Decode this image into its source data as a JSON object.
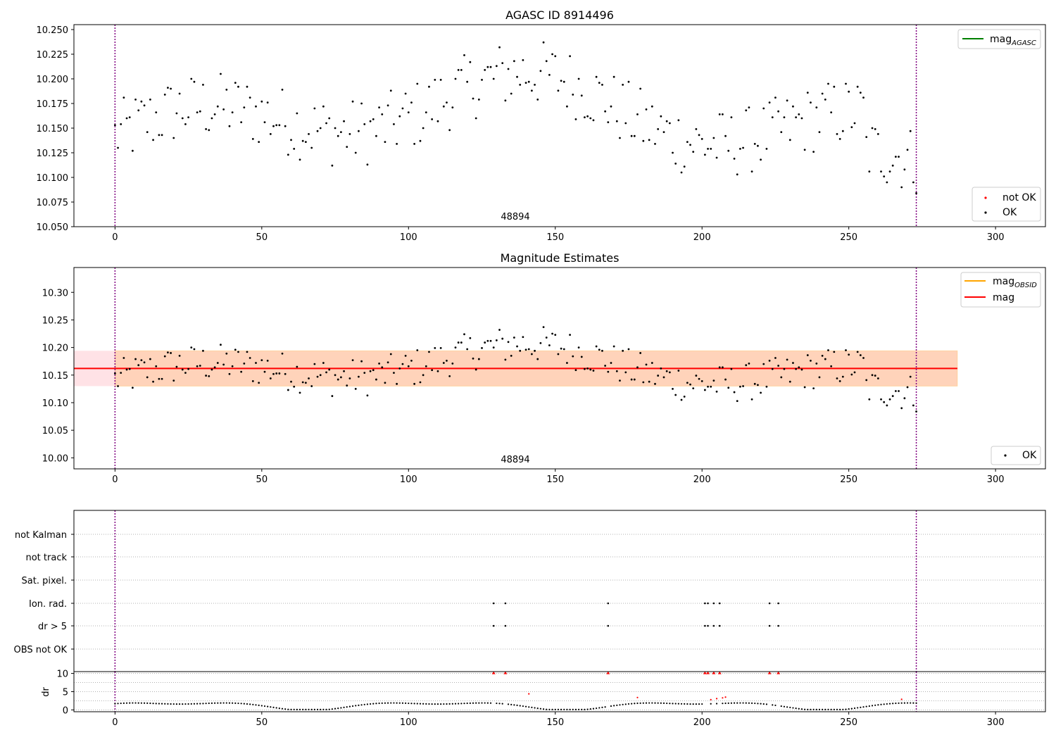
{
  "chart_data": [
    {
      "type": "scatter",
      "title": "AGASC ID 8914496",
      "annotation": "48894",
      "xlim": [
        -14,
        317
      ],
      "ylim": [
        10.05,
        10.255
      ],
      "xticks": [
        "0",
        "50",
        "100",
        "150",
        "200",
        "250",
        "300"
      ],
      "yticks": [
        "10.050",
        "10.075",
        "10.100",
        "10.125",
        "10.150",
        "10.175",
        "10.200",
        "10.225",
        "10.250"
      ],
      "vlines": [
        0,
        273
      ],
      "legend_lines": [
        {
          "label": "mag",
          "sub": "AGASC",
          "color": "#008000"
        }
      ],
      "legend_points": [
        {
          "label": "not OK",
          "color": "#ff0000"
        },
        {
          "label": "OK",
          "color": "#000000"
        }
      ]
    },
    {
      "type": "scatter",
      "title": "Magnitude Estimates",
      "annotation": "48894",
      "xlim": [
        -14,
        317
      ],
      "ylim": [
        9.98,
        10.345
      ],
      "xticks": [
        "0",
        "50",
        "100",
        "150",
        "200",
        "250",
        "300"
      ],
      "yticks": [
        "10.00",
        "10.05",
        "10.10",
        "10.15",
        "10.20",
        "10.25",
        "10.30"
      ],
      "vlines": [
        0,
        273
      ],
      "mag_line": {
        "y": 10.162,
        "x0": -14,
        "x1": 287,
        "color": "#ff0000"
      },
      "band_outer": {
        "y0": 10.13,
        "y1": 10.194,
        "x0": -14,
        "x1": 287,
        "color": "#ffb6c1"
      },
      "band_inner": {
        "y0": 10.13,
        "y1": 10.194,
        "x0": 0,
        "x1": 287,
        "color": "#ffd0b0"
      },
      "legend_lines": [
        {
          "label": "mag",
          "sub": "OBSID",
          "color": "#ffa500"
        },
        {
          "label": "mag",
          "sub": "",
          "color": "#ff0000"
        }
      ],
      "legend_points": [
        {
          "label": "OK",
          "color": "#000000"
        }
      ]
    },
    {
      "type": "scatter",
      "title": "",
      "xlim": [
        -14,
        317
      ],
      "xticks": [
        "0",
        "50",
        "100",
        "150",
        "200",
        "250",
        "300"
      ],
      "flag_labels": [
        "not Kalman",
        "not track",
        "Sat. pixel.",
        "Ion. rad.",
        "dr > 5",
        "OBS not OK"
      ],
      "ion_rad_x": [
        129,
        133,
        168,
        201,
        202,
        204,
        206,
        223,
        226
      ],
      "dr5_x": [
        129,
        133,
        168,
        201,
        202,
        204,
        206,
        223,
        226
      ],
      "vlines": [
        0,
        273
      ]
    },
    {
      "type": "scatter",
      "title": "",
      "ylabel": "dr",
      "xlim": [
        -14,
        317
      ],
      "ylim": [
        -0.5,
        10.5
      ],
      "yticks": [
        "0",
        "5",
        "10"
      ],
      "capped_points_x": [
        129,
        133,
        168,
        201,
        202,
        204,
        206,
        223,
        226
      ],
      "red_points": [
        [
          141,
          4.4
        ],
        [
          178,
          3.4
        ],
        [
          203,
          2.8
        ],
        [
          205,
          3.1
        ],
        [
          207,
          3.3
        ],
        [
          208,
          3.5
        ],
        [
          268,
          2.9
        ]
      ],
      "vlines": [
        0,
        273
      ]
    }
  ]
}
